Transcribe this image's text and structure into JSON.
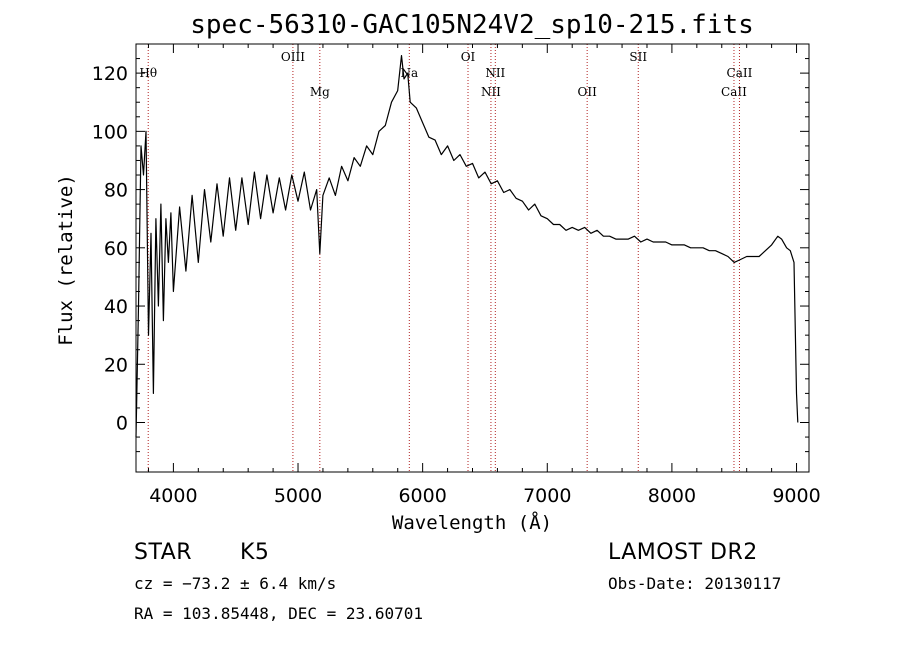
{
  "chart_data": {
    "type": "line",
    "title": "spec-56310-GAC105N24V2_sp10-215.fits",
    "xlabel": "Wavelength (Å)",
    "ylabel": "Flux (relative)",
    "xlim": [
      3700,
      9100
    ],
    "ylim": [
      -17,
      130
    ],
    "x_ticks": [
      4000,
      5000,
      6000,
      7000,
      8000,
      9000
    ],
    "y_ticks": [
      0,
      20,
      40,
      60,
      80,
      100,
      120
    ],
    "x_tick_labels": [
      "4000",
      "5000",
      "6000",
      "7000",
      "8000",
      "9000"
    ],
    "y_tick_labels": [
      "0",
      "20",
      "40",
      "60",
      "80",
      "100",
      "120"
    ],
    "spectral_lines": [
      {
        "name": "Hθ",
        "wavelength": 3798,
        "row": 1
      },
      {
        "name": "OIII",
        "wavelength": 4959,
        "row": 0
      },
      {
        "name": "Mg",
        "wavelength": 5175,
        "row": 2
      },
      {
        "name": "Na",
        "wavelength": 5893,
        "row": 1
      },
      {
        "name": "OI",
        "wavelength": 6364,
        "row": 0
      },
      {
        "name": "NII",
        "wavelength": 6548,
        "row": 2
      },
      {
        "name": "NII",
        "wavelength": 6583,
        "row": 1
      },
      {
        "name": "OII",
        "wavelength": 7320,
        "row": 2
      },
      {
        "name": "SII",
        "wavelength": 7730,
        "row": 0
      },
      {
        "name": "CaII",
        "wavelength": 8498,
        "row": 2
      },
      {
        "name": "CaII",
        "wavelength": 8542,
        "row": 1
      }
    ],
    "series": [
      {
        "points": [
          [
            3700,
            -5
          ],
          [
            3720,
            40
          ],
          [
            3740,
            95
          ],
          [
            3760,
            85
          ],
          [
            3780,
            100
          ],
          [
            3800,
            30
          ],
          [
            3820,
            65
          ],
          [
            3840,
            10
          ],
          [
            3860,
            70
          ],
          [
            3880,
            40
          ],
          [
            3900,
            75
          ],
          [
            3920,
            35
          ],
          [
            3940,
            70
          ],
          [
            3960,
            55
          ],
          [
            3980,
            72
          ],
          [
            4000,
            45
          ],
          [
            4050,
            74
          ],
          [
            4100,
            52
          ],
          [
            4150,
            78
          ],
          [
            4200,
            55
          ],
          [
            4250,
            80
          ],
          [
            4300,
            62
          ],
          [
            4350,
            82
          ],
          [
            4400,
            64
          ],
          [
            4450,
            84
          ],
          [
            4500,
            66
          ],
          [
            4550,
            84
          ],
          [
            4600,
            68
          ],
          [
            4650,
            86
          ],
          [
            4700,
            70
          ],
          [
            4750,
            85
          ],
          [
            4800,
            72
          ],
          [
            4850,
            84
          ],
          [
            4900,
            73
          ],
          [
            4950,
            85
          ],
          [
            5000,
            76
          ],
          [
            5050,
            86
          ],
          [
            5100,
            73
          ],
          [
            5150,
            80
          ],
          [
            5175,
            58
          ],
          [
            5200,
            78
          ],
          [
            5250,
            84
          ],
          [
            5300,
            78
          ],
          [
            5350,
            88
          ],
          [
            5400,
            83
          ],
          [
            5450,
            91
          ],
          [
            5500,
            88
          ],
          [
            5550,
            95
          ],
          [
            5600,
            92
          ],
          [
            5650,
            100
          ],
          [
            5700,
            102
          ],
          [
            5750,
            110
          ],
          [
            5800,
            114
          ],
          [
            5830,
            126
          ],
          [
            5850,
            118
          ],
          [
            5880,
            120
          ],
          [
            5900,
            110
          ],
          [
            5950,
            108
          ],
          [
            6000,
            103
          ],
          [
            6050,
            98
          ],
          [
            6100,
            97
          ],
          [
            6150,
            92
          ],
          [
            6200,
            95
          ],
          [
            6250,
            90
          ],
          [
            6300,
            92
          ],
          [
            6350,
            88
          ],
          [
            6400,
            89
          ],
          [
            6450,
            84
          ],
          [
            6500,
            86
          ],
          [
            6550,
            82
          ],
          [
            6600,
            83
          ],
          [
            6650,
            79
          ],
          [
            6700,
            80
          ],
          [
            6750,
            77
          ],
          [
            6800,
            76
          ],
          [
            6850,
            73
          ],
          [
            6900,
            75
          ],
          [
            6950,
            71
          ],
          [
            7000,
            70
          ],
          [
            7050,
            68
          ],
          [
            7100,
            68
          ],
          [
            7150,
            66
          ],
          [
            7200,
            67
          ],
          [
            7250,
            66
          ],
          [
            7300,
            67
          ],
          [
            7350,
            65
          ],
          [
            7400,
            66
          ],
          [
            7450,
            64
          ],
          [
            7500,
            64
          ],
          [
            7550,
            63
          ],
          [
            7600,
            63
          ],
          [
            7650,
            63
          ],
          [
            7700,
            64
          ],
          [
            7750,
            62
          ],
          [
            7800,
            63
          ],
          [
            7850,
            62
          ],
          [
            7900,
            62
          ],
          [
            7950,
            62
          ],
          [
            8000,
            61
          ],
          [
            8050,
            61
          ],
          [
            8100,
            61
          ],
          [
            8150,
            60
          ],
          [
            8200,
            60
          ],
          [
            8250,
            60
          ],
          [
            8300,
            59
          ],
          [
            8350,
            59
          ],
          [
            8400,
            58
          ],
          [
            8450,
            57
          ],
          [
            8500,
            55
          ],
          [
            8550,
            56
          ],
          [
            8600,
            57
          ],
          [
            8650,
            57
          ],
          [
            8700,
            57
          ],
          [
            8750,
            59
          ],
          [
            8800,
            61
          ],
          [
            8850,
            64
          ],
          [
            8880,
            63
          ],
          [
            8920,
            60
          ],
          [
            8950,
            59
          ],
          [
            8980,
            55
          ],
          [
            9000,
            10
          ],
          [
            9010,
            0
          ]
        ]
      }
    ]
  },
  "info": {
    "object_class": "STAR",
    "subclass": "K5",
    "survey": "LAMOST DR2",
    "cz": "cz = −73.2 ± 6.4 km/s",
    "obs_date": "Obs-Date: 20130117",
    "coords": "RA = 103.85448, DEC =  23.60701"
  }
}
